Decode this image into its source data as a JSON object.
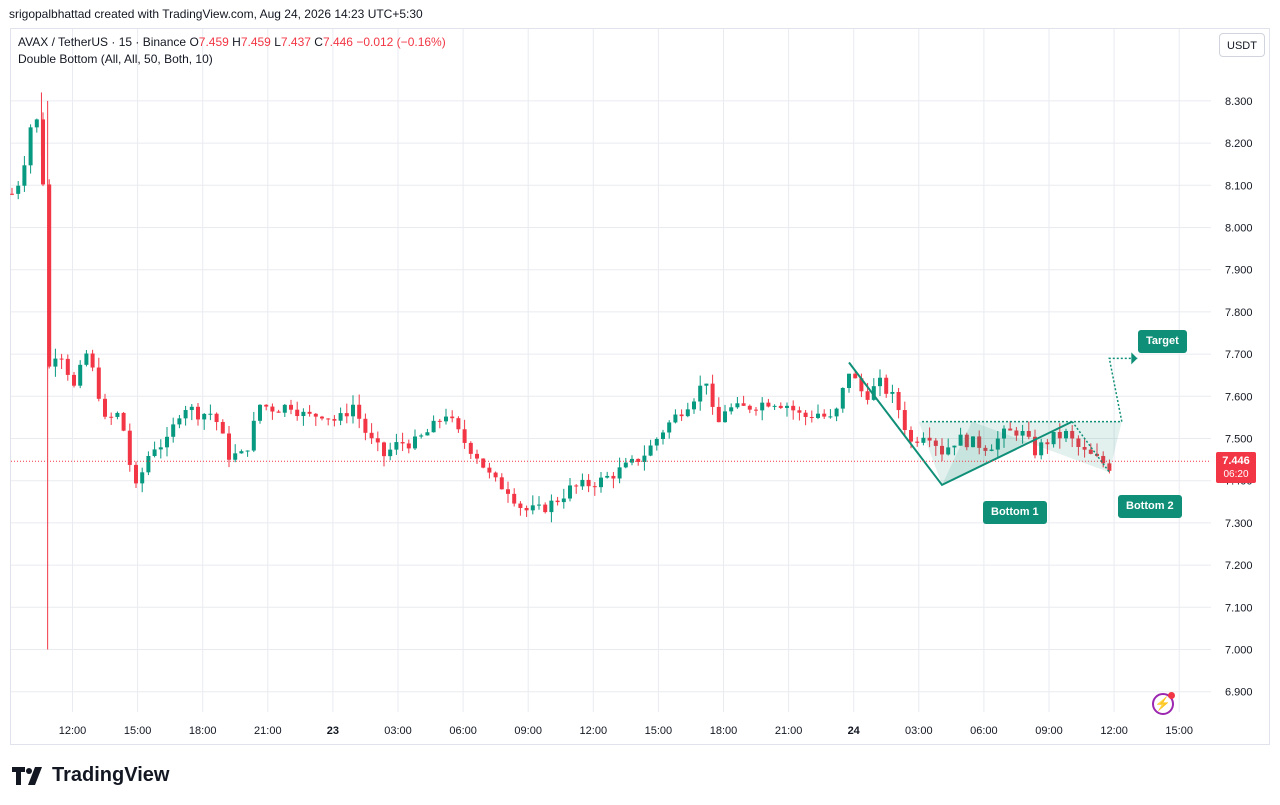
{
  "header": {
    "attribution": "srigopalbhattad created with TradingView.com, Aug 24, 2026 14:23 UTC+5:30"
  },
  "legend": {
    "symbol": "AVAX / TetherUS · 15 · Binance",
    "o_label": "O",
    "o_value": "7.459",
    "h_label": "H",
    "h_value": "7.459",
    "l_label": "L",
    "l_value": "7.437",
    "c_label": "C",
    "c_value": "7.446",
    "change": "−0.012 (−0.16%)",
    "indicator": "Double Bottom (All, All, 50, Both, 10)"
  },
  "currency_button": "USDT",
  "last_price": {
    "value": "7.446",
    "countdown": "06:20"
  },
  "pattern_labels": {
    "bottom1": "Bottom 1",
    "bottom2": "Bottom 2",
    "target": "Target"
  },
  "brand": {
    "name": "TradingView"
  },
  "colors": {
    "up": "#089981",
    "down": "#f23645",
    "pattern": "#0f8f77",
    "grid": "#e9ebf0"
  },
  "chart_data": {
    "type": "candlestick",
    "title": "AVAX / TetherUS · 15 · Binance",
    "y_axis": {
      "ticks": [
        "6.900",
        "7.000",
        "7.100",
        "7.200",
        "7.300",
        "7.400",
        "7.500",
        "7.600",
        "7.700",
        "7.800",
        "7.900",
        "8.000",
        "8.100",
        "8.200",
        "8.300"
      ],
      "range": [
        6.86,
        8.5
      ]
    },
    "x_axis": {
      "ticks": [
        "12:00",
        "15:00",
        "18:00",
        "21:00",
        "23",
        "03:00",
        "06:00",
        "09:00",
        "12:00",
        "15:00",
        "18:00",
        "21:00",
        "24",
        "03:00",
        "06:00",
        "09:00",
        "12:00",
        "15:00"
      ]
    },
    "price_path": [
      {
        "t": 0,
        "p": 8.08
      },
      {
        "t": 0.3,
        "p": 8.12
      },
      {
        "t": 0.6,
        "p": 8.24
      },
      {
        "t": 0.95,
        "p": 8.26
      },
      {
        "t": 1.15,
        "p": 7.66
      },
      {
        "t": 1.5,
        "p": 7.72
      },
      {
        "t": 2.0,
        "p": 7.62
      },
      {
        "t": 2.4,
        "p": 7.7
      },
      {
        "t": 2.7,
        "p": 7.64
      },
      {
        "t": 3.0,
        "p": 7.54
      },
      {
        "t": 3.5,
        "p": 7.56
      },
      {
        "t": 3.8,
        "p": 7.44
      },
      {
        "t": 4.0,
        "p": 7.38
      },
      {
        "t": 4.5,
        "p": 7.48
      },
      {
        "t": 5.0,
        "p": 7.49
      },
      {
        "t": 5.5,
        "p": 7.58
      },
      {
        "t": 6.0,
        "p": 7.56
      },
      {
        "t": 6.5,
        "p": 7.56
      },
      {
        "t": 7.0,
        "p": 7.46
      },
      {
        "t": 7.5,
        "p": 7.46
      },
      {
        "t": 8.0,
        "p": 7.58
      },
      {
        "t": 8.5,
        "p": 7.57
      },
      {
        "t": 9.0,
        "p": 7.58
      },
      {
        "t": 9.5,
        "p": 7.55
      },
      {
        "t": 10.0,
        "p": 7.56
      },
      {
        "t": 10.5,
        "p": 7.54
      },
      {
        "t": 11.0,
        "p": 7.58
      },
      {
        "t": 11.5,
        "p": 7.5
      },
      {
        "t": 12.0,
        "p": 7.46
      },
      {
        "t": 12.5,
        "p": 7.49
      },
      {
        "t": 13.0,
        "p": 7.49
      },
      {
        "t": 13.5,
        "p": 7.52
      },
      {
        "t": 14.0,
        "p": 7.56
      },
      {
        "t": 14.5,
        "p": 7.5
      },
      {
        "t": 15.0,
        "p": 7.46
      },
      {
        "t": 15.5,
        "p": 7.4
      },
      {
        "t": 16.0,
        "p": 7.38
      },
      {
        "t": 16.5,
        "p": 7.33
      },
      {
        "t": 17.0,
        "p": 7.33
      },
      {
        "t": 17.5,
        "p": 7.35
      },
      {
        "t": 18.0,
        "p": 7.38
      },
      {
        "t": 18.5,
        "p": 7.39
      },
      {
        "t": 19.0,
        "p": 7.4
      },
      {
        "t": 19.5,
        "p": 7.42
      },
      {
        "t": 20.0,
        "p": 7.44
      },
      {
        "t": 20.5,
        "p": 7.47
      },
      {
        "t": 21.0,
        "p": 7.52
      },
      {
        "t": 21.5,
        "p": 7.56
      },
      {
        "t": 22.0,
        "p": 7.6
      },
      {
        "t": 22.4,
        "p": 7.64
      },
      {
        "t": 22.7,
        "p": 7.52
      },
      {
        "t": 23.0,
        "p": 7.57
      },
      {
        "t": 23.5,
        "p": 7.57
      },
      {
        "t": 24.0,
        "p": 7.58
      },
      {
        "t": 24.5,
        "p": 7.59
      },
      {
        "t": 25.0,
        "p": 7.58
      },
      {
        "t": 25.5,
        "p": 7.55
      },
      {
        "t": 26.0,
        "p": 7.56
      },
      {
        "t": 26.5,
        "p": 7.54
      },
      {
        "t": 27.0,
        "p": 7.66
      },
      {
        "t": 27.5,
        "p": 7.6
      },
      {
        "t": 28.0,
        "p": 7.63
      },
      {
        "t": 28.5,
        "p": 7.59
      },
      {
        "t": 29.0,
        "p": 7.49
      },
      {
        "t": 29.5,
        "p": 7.52
      },
      {
        "t": 30.0,
        "p": 7.47
      },
      {
        "t": 30.5,
        "p": 7.5
      },
      {
        "t": 31.0,
        "p": 7.49
      },
      {
        "t": 31.5,
        "p": 7.48
      },
      {
        "t": 32.0,
        "p": 7.51
      },
      {
        "t": 32.5,
        "p": 7.52
      },
      {
        "t": 33.0,
        "p": 7.47
      },
      {
        "t": 33.5,
        "p": 7.5
      },
      {
        "t": 34.0,
        "p": 7.51
      },
      {
        "t": 34.5,
        "p": 7.47
      },
      {
        "t": 35.0,
        "p": 7.45
      },
      {
        "t": 35.5,
        "p": 7.43
      }
    ],
    "wicks": [
      {
        "t": 0.95,
        "high": 8.32,
        "low": 8.17
      },
      {
        "t": 1.15,
        "high": 8.3,
        "low": 7.0
      }
    ],
    "last_price": 7.446,
    "pattern": {
      "name": "Double Bottom",
      "start": {
        "t": 27.0,
        "p": 7.68
      },
      "bottom1": {
        "t": 30.0,
        "p": 7.39
      },
      "peak": {
        "t": 34.2,
        "p": 7.54
      },
      "bottom2": {
        "t": 35.4,
        "p": 7.42
      },
      "breakout": {
        "t": 35.8,
        "p": 7.54
      },
      "target": {
        "t": 36.3,
        "p": 7.69
      }
    }
  }
}
